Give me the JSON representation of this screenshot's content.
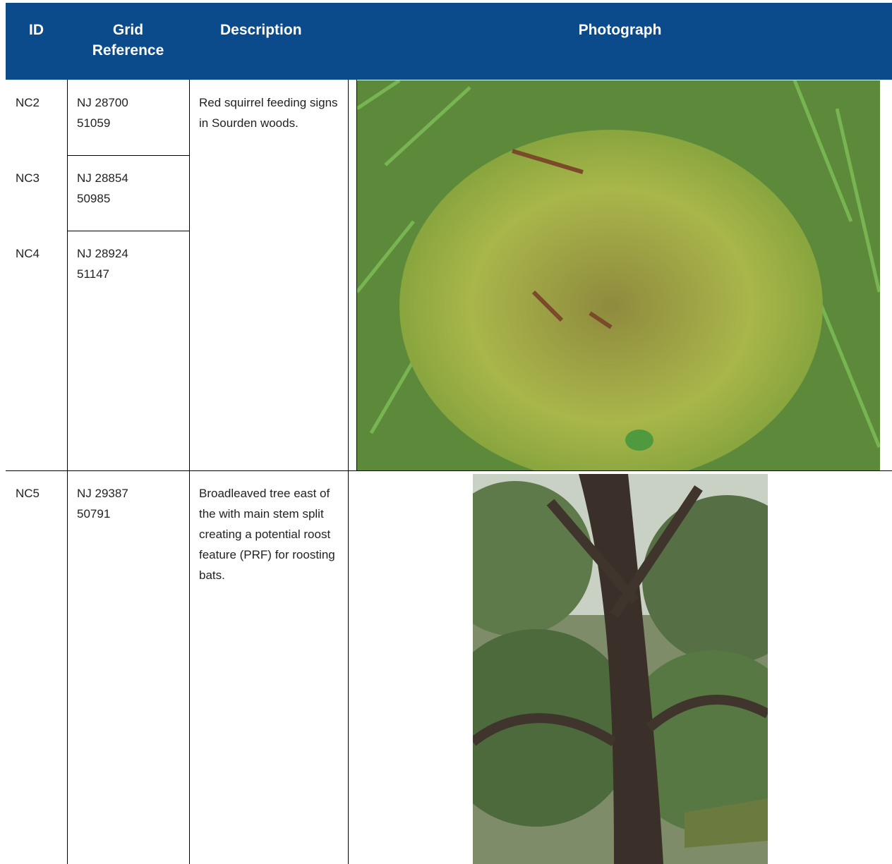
{
  "table": {
    "header": [
      "ID",
      "Grid Reference",
      "Description",
      "Photograph"
    ],
    "rows": [
      [
        "NC2",
        "NJ 28700 51059"
      ],
      [
        "NC3",
        "NJ 28854 50985"
      ],
      [
        "NC4",
        "NJ 28924 51147"
      ],
      [
        "NC5",
        "NJ 29387 50791"
      ]
    ],
    "descriptions": [
      "Red squirrel feeding signs in Sourden woods.",
      "Broadleaved tree east of the with main stem split creating a potential roost feature (PRF) for roosting bats."
    ]
  }
}
